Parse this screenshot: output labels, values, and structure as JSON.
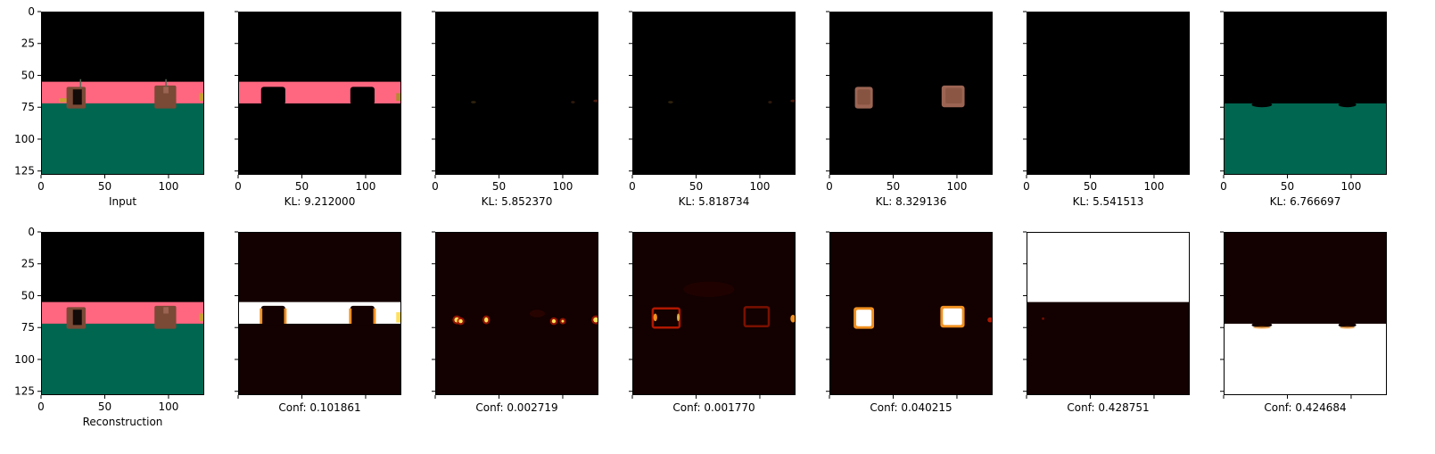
{
  "chart_data": {
    "type": "image-grid",
    "rows": 2,
    "cols": 7,
    "image_size": [
      128,
      128
    ],
    "axis": {
      "xlim": [
        0,
        128
      ],
      "ylim": [
        128,
        0
      ],
      "xticks": [
        0,
        50,
        100
      ],
      "yticks": [
        0,
        25,
        50,
        75,
        100,
        125
      ]
    },
    "colors": {
      "black": "#000000",
      "pink": "#FF6680",
      "green": "#006650",
      "brown": "#7A4A36",
      "brown_light": "#9C6553",
      "dark_red": "#130000",
      "heat_white": "#FFFFFF",
      "heat_yellow": "#FFE05A",
      "heat_orange": "#F09020",
      "heat_red": "#B01800"
    },
    "panels": [
      {
        "row": 0,
        "col": 0,
        "label": "Input",
        "content": "input"
      },
      {
        "row": 0,
        "col": 1,
        "label": "KL: 9.212000",
        "content": "slot_pink_band"
      },
      {
        "row": 0,
        "col": 2,
        "label": "KL: 5.852370",
        "content": "slot_dark"
      },
      {
        "row": 0,
        "col": 3,
        "label": "KL: 5.818734",
        "content": "slot_dark"
      },
      {
        "row": 0,
        "col": 4,
        "label": "KL: 8.329136",
        "content": "slot_objects"
      },
      {
        "row": 0,
        "col": 5,
        "label": "KL: 5.541513",
        "content": "slot_black"
      },
      {
        "row": 0,
        "col": 6,
        "label": "KL: 6.766697",
        "content": "slot_floor"
      },
      {
        "row": 1,
        "col": 0,
        "label": "Reconstruction",
        "content": "reconstruction"
      },
      {
        "row": 1,
        "col": 1,
        "label": "Conf: 0.101861",
        "content": "conf_band"
      },
      {
        "row": 1,
        "col": 2,
        "label": "Conf: 0.002719",
        "content": "conf_sparse"
      },
      {
        "row": 1,
        "col": 3,
        "label": "Conf: 0.001770",
        "content": "conf_edges"
      },
      {
        "row": 1,
        "col": 4,
        "label": "Conf: 0.040215",
        "content": "conf_objects"
      },
      {
        "row": 1,
        "col": 5,
        "label": "Conf: 0.428751",
        "content": "conf_top"
      },
      {
        "row": 1,
        "col": 6,
        "label": "Conf: 0.424684",
        "content": "conf_floor"
      }
    ]
  }
}
